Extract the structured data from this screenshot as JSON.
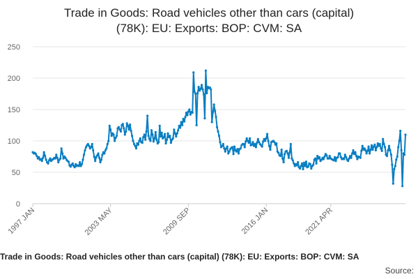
{
  "title_line1": "Trade in Goods: Road vehicles other than cars (capital)",
  "title_line2": "(78K): EU: Exports: BOP: CVM: SA",
  "footer_title": "Trade in Goods: Road vehicles other than cars (capital) (78K): EU: Exports: BOP: CVM: SA",
  "footer_source": "Source:",
  "colors": {
    "line": "#0a7ec2",
    "grid": "#e6e6e6",
    "axis": "#cccccc"
  },
  "chart_data": {
    "type": "line",
    "title": "Trade in Goods: Road vehicles other than cars (capital) (78K): EU: Exports: BOP: CVM: SA",
    "xlabel": "",
    "ylabel": "",
    "ylim": [
      0,
      250
    ],
    "yticks": [
      0,
      50,
      100,
      150,
      200,
      250
    ],
    "xticks": [
      "1997 JAN",
      "2003 MAY",
      "2009 SEP",
      "2016 JAN",
      "2021 APR"
    ],
    "grid": true,
    "series": [
      {
        "name": "",
        "frequency": "monthly",
        "start": "1997 JAN",
        "values": [
          82,
          80,
          81,
          79,
          76,
          72,
          74,
          70,
          71,
          68,
          73,
          82,
          76,
          70,
          66,
          64,
          69,
          72,
          68,
          70,
          71,
          73,
          72,
          78,
          73,
          66,
          70,
          72,
          88,
          80,
          72,
          75,
          73,
          70,
          68,
          67,
          61,
          59,
          62,
          64,
          60,
          58,
          63,
          60,
          61,
          60,
          66,
          60,
          63,
          70,
          78,
          85,
          90,
          93,
          95,
          92,
          88,
          90,
          95,
          85,
          75,
          68,
          74,
          77,
          80,
          73,
          66,
          70,
          78,
          82,
          80,
          85,
          88,
          95,
          100,
          124,
          118,
          108,
          112,
          110,
          100,
          105,
          108,
          120,
          122,
          118,
          115,
          125,
          127,
          120,
          110,
          115,
          128,
          124,
          118,
          126,
          116,
          108,
          100,
          95,
          92,
          88,
          96,
          94,
          100,
          104,
          98,
          97,
          106,
          110,
          102,
          115,
          140,
          108,
          103,
          100,
          117,
          110,
          99,
          104,
          114,
          102,
          96,
          98,
          124,
          107,
          113,
          104,
          106,
          111,
          96,
          102,
          112,
          106,
          108,
          97,
          102,
          104,
          118,
          112,
          107,
          112,
          117,
          124,
          121,
          130,
          125,
          135,
          131,
          138,
          145,
          141,
          147,
          150,
          142,
          146,
          145,
          209,
          178,
          175,
          125,
          176,
          186,
          180,
          183,
          189,
          182,
          174,
          136,
          212,
          176,
          186,
          184,
          185,
          182,
          130,
          146,
          158,
          148,
          138,
          122,
          115,
          108,
          98,
          90,
          92,
          95,
          88,
          83,
          88,
          91,
          80,
          83,
          87,
          89,
          90,
          79,
          91,
          85,
          83,
          87,
          80,
          87,
          88,
          93,
          95,
          95,
          90,
          99,
          104,
          100,
          97,
          104,
          93,
          94,
          98,
          92,
          95,
          90,
          97,
          103,
          98,
          95,
          93,
          91,
          99,
          103,
          100,
          104,
          111,
          100,
          92,
          86,
          98,
          99,
          100,
          98,
          94,
          96,
          83,
          81,
          77,
          76,
          86,
          72,
          66,
          79,
          83,
          84,
          80,
          73,
          82,
          95,
          72,
          69,
          64,
          60,
          63,
          61,
          66,
          58,
          56,
          60,
          64,
          55,
          65,
          60,
          67,
          58,
          59,
          64,
          63,
          56,
          60,
          62,
          70,
          72,
          64,
          76,
          72,
          74,
          68,
          70,
          73,
          71,
          75,
          79,
          77,
          72,
          72,
          76,
          72,
          71,
          70,
          69,
          74,
          68,
          73,
          74,
          80,
          80,
          74,
          71,
          72,
          71,
          78,
          74,
          70,
          68,
          72,
          76,
          73,
          80,
          85,
          79,
          82,
          76,
          71,
          75,
          74,
          73,
          84,
          92,
          86,
          88,
          85,
          80,
          84,
          91,
          80,
          86,
          93,
          86,
          91,
          94,
          85,
          90,
          96,
          92,
          95,
          88,
          84,
          103,
          95,
          90,
          78,
          76,
          85,
          92,
          85,
          78,
          62,
          32,
          55,
          60,
          70,
          75,
          90,
          100,
          116,
          85,
          28,
          80,
          78,
          110
        ]
      }
    ]
  }
}
